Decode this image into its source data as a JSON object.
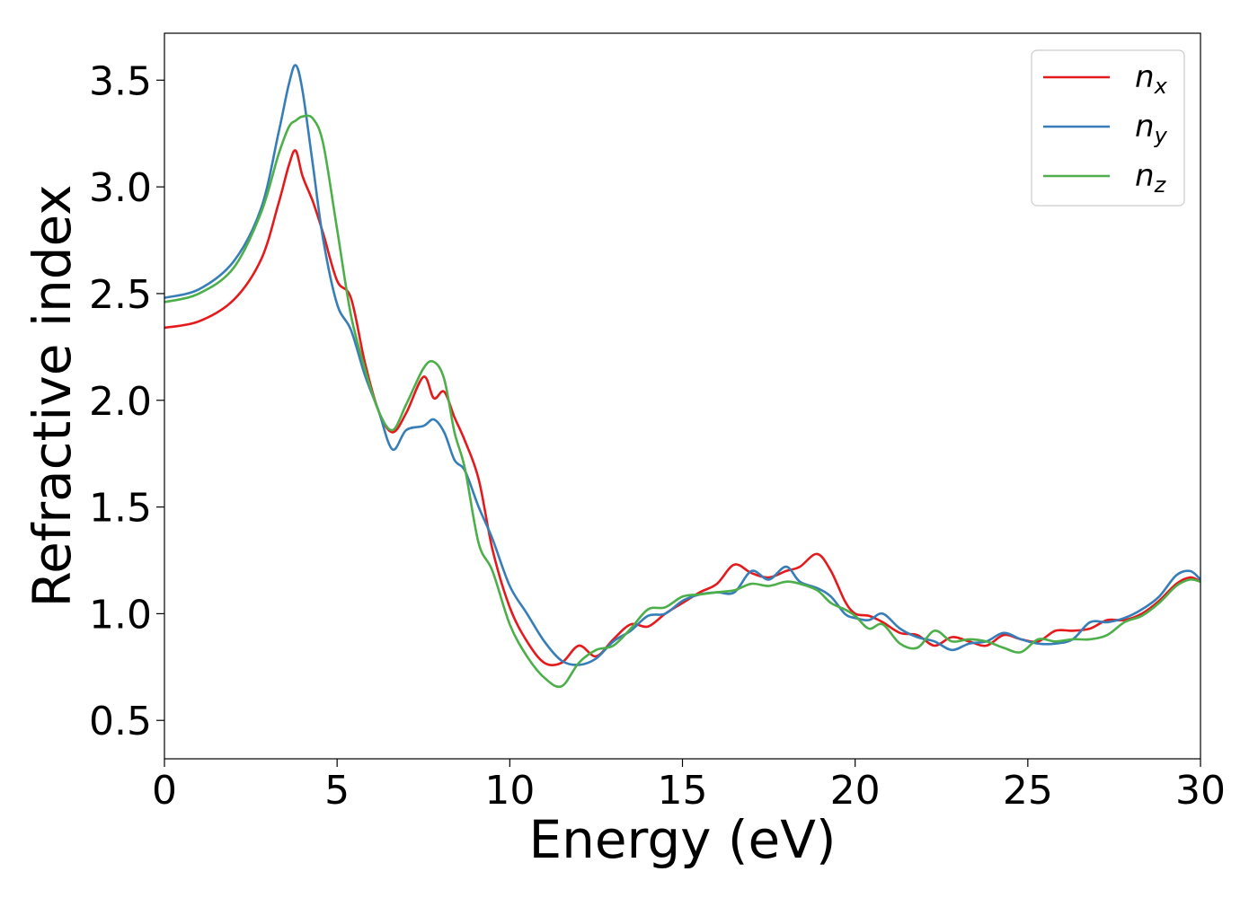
{
  "chart_data": {
    "type": "line",
    "title": "",
    "xlabel": "Energy (eV)",
    "ylabel": "Refractive index",
    "xlim": [
      0,
      30
    ],
    "ylim": [
      0.32,
      3.72
    ],
    "xticks": [
      0,
      5,
      10,
      15,
      20,
      25,
      30
    ],
    "xtick_labels": [
      "0",
      "5",
      "10",
      "15",
      "20",
      "25",
      "30"
    ],
    "yticks": [
      0.5,
      1.0,
      1.5,
      2.0,
      2.5,
      3.0,
      3.5
    ],
    "ytick_labels": [
      "0.5",
      "1.0",
      "1.5",
      "2.0",
      "2.5",
      "3.0",
      "3.5"
    ],
    "grid": false,
    "legend_position": "top-right",
    "series": [
      {
        "name": "n",
        "subscript": "x",
        "color": "#e41a1c",
        "points": [
          [
            0,
            2.34
          ],
          [
            1,
            2.37
          ],
          [
            2,
            2.47
          ],
          [
            2.8,
            2.66
          ],
          [
            3.3,
            2.92
          ],
          [
            3.6,
            3.1
          ],
          [
            3.8,
            3.17
          ],
          [
            4.0,
            3.05
          ],
          [
            4.3,
            2.93
          ],
          [
            4.6,
            2.78
          ],
          [
            5.0,
            2.56
          ],
          [
            5.4,
            2.48
          ],
          [
            5.8,
            2.18
          ],
          [
            6.2,
            1.95
          ],
          [
            6.6,
            1.85
          ],
          [
            7.0,
            1.94
          ],
          [
            7.5,
            2.11
          ],
          [
            7.8,
            2.01
          ],
          [
            8.1,
            2.04
          ],
          [
            8.4,
            1.92
          ],
          [
            8.7,
            1.81
          ],
          [
            9.1,
            1.63
          ],
          [
            9.5,
            1.3
          ],
          [
            10.0,
            1.03
          ],
          [
            10.5,
            0.87
          ],
          [
            11.0,
            0.77
          ],
          [
            11.5,
            0.77
          ],
          [
            12.0,
            0.85
          ],
          [
            12.5,
            0.8
          ],
          [
            13.0,
            0.88
          ],
          [
            13.5,
            0.95
          ],
          [
            14.0,
            0.94
          ],
          [
            14.5,
            1.0
          ],
          [
            15.0,
            1.05
          ],
          [
            15.5,
            1.1
          ],
          [
            16.0,
            1.14
          ],
          [
            16.5,
            1.23
          ],
          [
            17.0,
            1.19
          ],
          [
            17.5,
            1.17
          ],
          [
            18.0,
            1.2
          ],
          [
            18.4,
            1.22
          ],
          [
            18.9,
            1.28
          ],
          [
            19.3,
            1.2
          ],
          [
            19.7,
            1.06
          ],
          [
            20.0,
            1.0
          ],
          [
            20.4,
            0.99
          ],
          [
            20.8,
            0.96
          ],
          [
            21.3,
            0.91
          ],
          [
            21.8,
            0.9
          ],
          [
            22.3,
            0.85
          ],
          [
            22.8,
            0.89
          ],
          [
            23.3,
            0.87
          ],
          [
            23.8,
            0.85
          ],
          [
            24.3,
            0.9
          ],
          [
            24.8,
            0.88
          ],
          [
            25.3,
            0.87
          ],
          [
            25.8,
            0.92
          ],
          [
            26.3,
            0.92
          ],
          [
            26.8,
            0.93
          ],
          [
            27.3,
            0.97
          ],
          [
            27.8,
            0.97
          ],
          [
            28.3,
            1.0
          ],
          [
            28.8,
            1.06
          ],
          [
            29.3,
            1.14
          ],
          [
            29.7,
            1.17
          ],
          [
            30.0,
            1.15
          ]
        ]
      },
      {
        "name": "n",
        "subscript": "y",
        "color": "#377eb8",
        "points": [
          [
            0,
            2.48
          ],
          [
            1,
            2.52
          ],
          [
            2,
            2.65
          ],
          [
            2.8,
            2.9
          ],
          [
            3.3,
            3.25
          ],
          [
            3.6,
            3.48
          ],
          [
            3.8,
            3.57
          ],
          [
            4.0,
            3.45
          ],
          [
            4.3,
            3.1
          ],
          [
            4.6,
            2.75
          ],
          [
            5.0,
            2.45
          ],
          [
            5.4,
            2.33
          ],
          [
            5.8,
            2.12
          ],
          [
            6.2,
            1.95
          ],
          [
            6.6,
            1.77
          ],
          [
            7.0,
            1.86
          ],
          [
            7.5,
            1.88
          ],
          [
            7.8,
            1.91
          ],
          [
            8.1,
            1.85
          ],
          [
            8.4,
            1.72
          ],
          [
            8.7,
            1.67
          ],
          [
            9.1,
            1.5
          ],
          [
            9.5,
            1.35
          ],
          [
            10.0,
            1.13
          ],
          [
            10.5,
            1.0
          ],
          [
            11.0,
            0.87
          ],
          [
            11.5,
            0.78
          ],
          [
            12.0,
            0.76
          ],
          [
            12.5,
            0.79
          ],
          [
            13.0,
            0.87
          ],
          [
            13.5,
            0.92
          ],
          [
            14.0,
            0.99
          ],
          [
            14.5,
            1.0
          ],
          [
            15.0,
            1.06
          ],
          [
            15.5,
            1.09
          ],
          [
            16.0,
            1.1
          ],
          [
            16.5,
            1.1
          ],
          [
            17.0,
            1.2
          ],
          [
            17.5,
            1.16
          ],
          [
            18.0,
            1.22
          ],
          [
            18.4,
            1.15
          ],
          [
            18.9,
            1.12
          ],
          [
            19.3,
            1.08
          ],
          [
            19.7,
            1.0
          ],
          [
            20.0,
            0.98
          ],
          [
            20.4,
            0.97
          ],
          [
            20.8,
            1.0
          ],
          [
            21.3,
            0.93
          ],
          [
            21.8,
            0.89
          ],
          [
            22.3,
            0.87
          ],
          [
            22.8,
            0.83
          ],
          [
            23.3,
            0.86
          ],
          [
            23.8,
            0.87
          ],
          [
            24.3,
            0.91
          ],
          [
            24.8,
            0.88
          ],
          [
            25.3,
            0.86
          ],
          [
            25.8,
            0.86
          ],
          [
            26.3,
            0.88
          ],
          [
            26.8,
            0.96
          ],
          [
            27.3,
            0.96
          ],
          [
            27.8,
            0.98
          ],
          [
            28.3,
            1.02
          ],
          [
            28.8,
            1.08
          ],
          [
            29.3,
            1.18
          ],
          [
            29.7,
            1.2
          ],
          [
            30.0,
            1.16
          ]
        ]
      },
      {
        "name": "n",
        "subscript": "z",
        "color": "#4daf4a",
        "points": [
          [
            0,
            2.46
          ],
          [
            1,
            2.5
          ],
          [
            2,
            2.62
          ],
          [
            2.8,
            2.88
          ],
          [
            3.3,
            3.15
          ],
          [
            3.6,
            3.28
          ],
          [
            3.8,
            3.31
          ],
          [
            4.0,
            3.33
          ],
          [
            4.3,
            3.32
          ],
          [
            4.6,
            3.2
          ],
          [
            5.0,
            2.8
          ],
          [
            5.4,
            2.4
          ],
          [
            5.8,
            2.15
          ],
          [
            6.2,
            1.95
          ],
          [
            6.6,
            1.86
          ],
          [
            7.0,
            1.98
          ],
          [
            7.5,
            2.15
          ],
          [
            7.8,
            2.18
          ],
          [
            8.1,
            2.1
          ],
          [
            8.4,
            1.85
          ],
          [
            8.7,
            1.68
          ],
          [
            9.1,
            1.33
          ],
          [
            9.5,
            1.2
          ],
          [
            10.0,
            0.95
          ],
          [
            10.5,
            0.8
          ],
          [
            11.0,
            0.7
          ],
          [
            11.5,
            0.66
          ],
          [
            12.0,
            0.77
          ],
          [
            12.5,
            0.83
          ],
          [
            13.0,
            0.85
          ],
          [
            13.5,
            0.93
          ],
          [
            14.0,
            1.02
          ],
          [
            14.5,
            1.03
          ],
          [
            15.0,
            1.08
          ],
          [
            15.5,
            1.09
          ],
          [
            16.0,
            1.1
          ],
          [
            16.5,
            1.11
          ],
          [
            17.0,
            1.14
          ],
          [
            17.5,
            1.13
          ],
          [
            18.0,
            1.15
          ],
          [
            18.4,
            1.14
          ],
          [
            18.9,
            1.11
          ],
          [
            19.3,
            1.05
          ],
          [
            19.7,
            1.02
          ],
          [
            20.0,
            0.99
          ],
          [
            20.4,
            0.93
          ],
          [
            20.8,
            0.95
          ],
          [
            21.3,
            0.86
          ],
          [
            21.8,
            0.84
          ],
          [
            22.3,
            0.92
          ],
          [
            22.8,
            0.87
          ],
          [
            23.3,
            0.88
          ],
          [
            23.8,
            0.87
          ],
          [
            24.3,
            0.84
          ],
          [
            24.8,
            0.82
          ],
          [
            25.3,
            0.88
          ],
          [
            25.8,
            0.87
          ],
          [
            26.3,
            0.88
          ],
          [
            26.8,
            0.88
          ],
          [
            27.3,
            0.9
          ],
          [
            27.8,
            0.96
          ],
          [
            28.3,
            0.99
          ],
          [
            28.8,
            1.05
          ],
          [
            29.3,
            1.13
          ],
          [
            29.7,
            1.16
          ],
          [
            30.0,
            1.15
          ]
        ]
      }
    ]
  }
}
